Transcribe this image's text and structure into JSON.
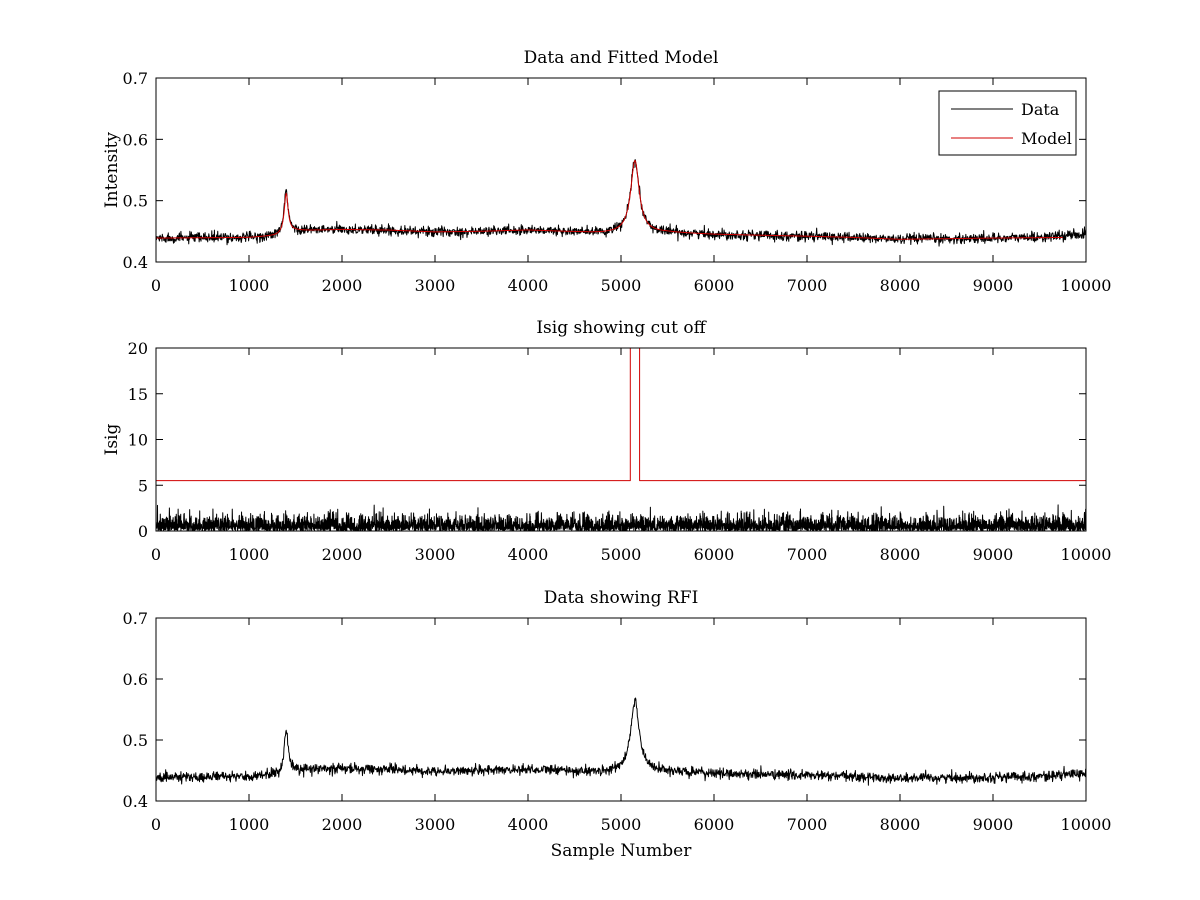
{
  "chart_data": [
    {
      "type": "line",
      "title": "Data and Fitted Model",
      "xlabel": "",
      "ylabel": "Intensity",
      "xlim": [
        0,
        10000
      ],
      "ylim": [
        0.4,
        0.7
      ],
      "xticks": [
        0,
        1000,
        2000,
        3000,
        4000,
        5000,
        6000,
        7000,
        8000,
        9000,
        10000
      ],
      "yticks": [
        0.4,
        0.5,
        0.6,
        0.7
      ],
      "ytick_labels": [
        "0.4",
        "0.5",
        "0.6",
        "0.7"
      ],
      "grid": false,
      "legend": {
        "placement": "top-right",
        "entries": [
          {
            "label": "Data",
            "color": "#000000"
          },
          {
            "label": "Model",
            "color": "#d00000"
          }
        ]
      },
      "series": [
        {
          "name": "Data",
          "color": "#000000",
          "style": "noisy",
          "noise_amplitude": 0.004,
          "baseline": [
            [
              0,
              0.439
            ],
            [
              1000,
              0.44
            ],
            [
              1300,
              0.443
            ],
            [
              1500,
              0.451
            ],
            [
              2000,
              0.453
            ],
            [
              2500,
              0.452
            ],
            [
              3000,
              0.449
            ],
            [
              3500,
              0.45
            ],
            [
              4000,
              0.452
            ],
            [
              4500,
              0.449
            ],
            [
              4800,
              0.447
            ],
            [
              5500,
              0.448
            ],
            [
              6000,
              0.445
            ],
            [
              7000,
              0.442
            ],
            [
              7500,
              0.44
            ],
            [
              8000,
              0.437
            ],
            [
              9000,
              0.439
            ],
            [
              9600,
              0.441
            ],
            [
              10000,
              0.446
            ]
          ],
          "peaks": [
            {
              "center": 1400,
              "height": 0.07,
              "width": 25
            },
            {
              "center": 5150,
              "height": 0.118,
              "width": 55
            }
          ]
        },
        {
          "name": "Model",
          "color": "#d00000",
          "style": "smooth",
          "x_range": [
            0,
            9750
          ],
          "baseline": [
            [
              0,
              0.439
            ],
            [
              1000,
              0.44
            ],
            [
              1300,
              0.443
            ],
            [
              1500,
              0.451
            ],
            [
              2000,
              0.453
            ],
            [
              2500,
              0.452
            ],
            [
              3000,
              0.449
            ],
            [
              3500,
              0.45
            ],
            [
              4000,
              0.452
            ],
            [
              4500,
              0.449
            ],
            [
              4800,
              0.447
            ],
            [
              5500,
              0.448
            ],
            [
              6000,
              0.445
            ],
            [
              7000,
              0.442
            ],
            [
              7500,
              0.44
            ],
            [
              8000,
              0.437
            ],
            [
              9000,
              0.439
            ],
            [
              9750,
              0.44
            ]
          ],
          "peaks": [
            {
              "center": 1400,
              "height": 0.065,
              "width": 25
            },
            {
              "center": 5150,
              "height": 0.118,
              "width": 55
            }
          ]
        }
      ]
    },
    {
      "type": "line",
      "title": "Isig showing cut off",
      "xlabel": "",
      "ylabel": "Isig",
      "xlim": [
        0,
        10000
      ],
      "ylim": [
        0,
        20
      ],
      "xticks": [
        0,
        1000,
        2000,
        3000,
        4000,
        5000,
        6000,
        7000,
        8000,
        9000,
        10000
      ],
      "yticks": [
        0,
        5,
        10,
        15,
        20
      ],
      "ytick_labels": [
        "0",
        "5",
        "10",
        "15",
        "20"
      ],
      "grid": false,
      "series": [
        {
          "name": "Isig",
          "color": "#000000",
          "style": "abs-noise",
          "scale": 0.8
        },
        {
          "name": "cut off",
          "color": "#d00000",
          "style": "step",
          "points": [
            [
              0,
              5.5
            ],
            [
              5100,
              5.5
            ],
            [
              5100,
              20
            ],
            [
              5200,
              20
            ],
            [
              5200,
              5.5
            ],
            [
              10000,
              5.5
            ]
          ]
        }
      ]
    },
    {
      "type": "line",
      "title": "Data showing RFI",
      "xlabel": "Sample Number",
      "ylabel": "",
      "xlim": [
        0,
        10000
      ],
      "ylim": [
        0.4,
        0.7
      ],
      "xticks": [
        0,
        1000,
        2000,
        3000,
        4000,
        5000,
        6000,
        7000,
        8000,
        9000,
        10000
      ],
      "yticks": [
        0.4,
        0.5,
        0.6,
        0.7
      ],
      "ytick_labels": [
        "0.4",
        "0.5",
        "0.6",
        "0.7"
      ],
      "grid": false,
      "series": [
        {
          "name": "Data",
          "color": "#000000",
          "style": "noisy",
          "noise_amplitude": 0.004,
          "baseline": [
            [
              0,
              0.439
            ],
            [
              1000,
              0.44
            ],
            [
              1300,
              0.443
            ],
            [
              1500,
              0.451
            ],
            [
              2000,
              0.453
            ],
            [
              2500,
              0.452
            ],
            [
              3000,
              0.449
            ],
            [
              3500,
              0.45
            ],
            [
              4000,
              0.452
            ],
            [
              4500,
              0.449
            ],
            [
              4800,
              0.447
            ],
            [
              5500,
              0.448
            ],
            [
              6000,
              0.445
            ],
            [
              7000,
              0.442
            ],
            [
              7500,
              0.44
            ],
            [
              8000,
              0.437
            ],
            [
              9000,
              0.439
            ],
            [
              9600,
              0.441
            ],
            [
              10000,
              0.446
            ]
          ],
          "peaks": [
            {
              "center": 1400,
              "height": 0.07,
              "width": 25
            },
            {
              "center": 5150,
              "height": 0.118,
              "width": 55
            }
          ]
        }
      ]
    }
  ]
}
